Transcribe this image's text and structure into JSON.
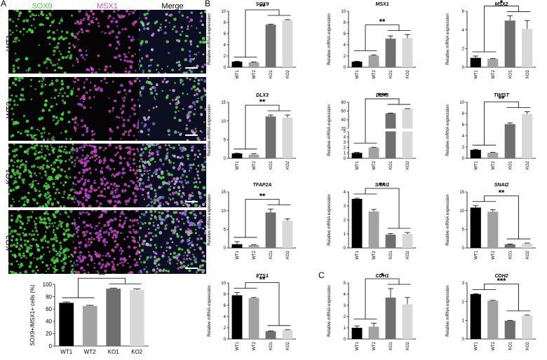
{
  "panels": {
    "A": "A",
    "B": "B",
    "C": "C"
  },
  "panel_a": {
    "columns": [
      {
        "label": "SOX9",
        "color": "#3fd43f"
      },
      {
        "label": "MSX1",
        "color": "#d04fd0"
      },
      {
        "label": "Merge",
        "color": "#000000"
      }
    ],
    "rows": [
      "WT1",
      "WT2",
      "KO1",
      "KO2"
    ]
  },
  "chart_data": [
    {
      "id": "quant",
      "type": "bar",
      "categories": [
        "WT1",
        "WT2",
        "KO1",
        "KO2"
      ],
      "values": [
        70,
        65,
        93,
        91
      ],
      "errors": [
        1.5,
        1,
        1,
        1.5
      ],
      "ylabel": "SOX9+/MSX1+ cells (%)",
      "yticks": [
        0,
        20,
        40,
        60,
        80,
        100
      ],
      "ylim": [
        0,
        100
      ],
      "sig": "**",
      "bracket": "groups"
    },
    {
      "id": "sox9",
      "type": "bar",
      "title": "SOX9",
      "categories": [
        "WT1",
        "WT2",
        "KO1",
        "KO2"
      ],
      "values": [
        1,
        0.9,
        7.6,
        8.4
      ],
      "errors": [
        0.05,
        0.05,
        0.1,
        0.1
      ],
      "ylabel": "Relative mRNA expression",
      "yticks": [
        0,
        2,
        4,
        6,
        8,
        10
      ],
      "ylim": [
        0,
        10
      ],
      "sig": "**",
      "bracket": "groups"
    },
    {
      "id": "msx1",
      "type": "bar",
      "title": "MSX1",
      "categories": [
        "WT1",
        "WT2",
        "KO1",
        "KO2"
      ],
      "values": [
        1,
        2.1,
        5.1,
        5.2
      ],
      "errors": [
        0.05,
        0.1,
        0.5,
        0.6
      ],
      "ylabel": "Relative mRNA expression",
      "yticks": [
        0,
        2,
        4,
        6,
        8,
        10
      ],
      "ylim": [
        0,
        10
      ],
      "sig": "**",
      "bracket": "groups"
    },
    {
      "id": "msx2",
      "type": "bar",
      "title": "MSX2",
      "categories": [
        "WT1",
        "WT2",
        "KO1",
        "KO2"
      ],
      "values": [
        1,
        0.9,
        5,
        4.1
      ],
      "errors": [
        0.2,
        0.05,
        0.5,
        0.9
      ],
      "ylabel": "Relative mRNA expression",
      "yticks": [
        0,
        2,
        4,
        6
      ],
      "ylim": [
        0,
        6
      ],
      "sig": "*",
      "bracket": "groups"
    },
    {
      "id": "dlx3",
      "type": "bar",
      "title": "DLX3",
      "categories": [
        "WT1",
        "WT2",
        "KO1",
        "KO2"
      ],
      "values": [
        1.3,
        1,
        11.2,
        10.9
      ],
      "errors": [
        0.05,
        0.2,
        0.4,
        0.7
      ],
      "ylabel": "Relative mRNA expression",
      "yticks": [
        0,
        5,
        10,
        15
      ],
      "ylim": [
        0,
        15
      ],
      "sig": "**",
      "bracket": "groups"
    },
    {
      "id": "dlx5",
      "type": "bar",
      "title": "DLX5",
      "categories": [
        "WT1",
        "WT2",
        "KO1",
        "KO2"
      ],
      "values": [
        1,
        2,
        55,
        65
      ],
      "errors": [
        0.1,
        0.05,
        0.5,
        0.5
      ],
      "ylabel": "Relative mRNA expression",
      "yticks": [
        0,
        1,
        2,
        3,
        4,
        5
      ],
      "yticks_upper": [
        20,
        40,
        60,
        80
      ],
      "ylim": [
        0,
        80
      ],
      "axis_break": [
        5,
        20
      ],
      "sig": "***",
      "bracket": "groups"
    },
    {
      "id": "twist",
      "type": "bar",
      "title": "TWIST",
      "categories": [
        "WT1",
        "WT2",
        "KO1",
        "KO2"
      ],
      "values": [
        1.5,
        1,
        6.1,
        7.9
      ],
      "errors": [
        0.1,
        0.05,
        0.2,
        0.4
      ],
      "ylabel": "Relative mRNA expression",
      "yticks": [
        0,
        2,
        4,
        6,
        8,
        10
      ],
      "ylim": [
        0,
        10
      ],
      "sig": "**",
      "bracket": "groups"
    },
    {
      "id": "tfap2a",
      "type": "bar",
      "title": "TFAP2A",
      "categories": [
        "WT1",
        "WT2",
        "KO1",
        "KO2"
      ],
      "values": [
        1,
        0.8,
        9.5,
        7.3
      ],
      "errors": [
        0.7,
        0.1,
        0.9,
        0.5
      ],
      "ylabel": "Relative mRNA expression",
      "yticks": [
        0,
        5,
        10,
        15
      ],
      "ylim": [
        0,
        15
      ],
      "sig": "**",
      "bracket": "groups"
    },
    {
      "id": "snai1",
      "type": "bar",
      "title": "SNAI1",
      "categories": [
        "WT1",
        "WT2",
        "KO1",
        "KO2"
      ],
      "values": [
        3.5,
        2.6,
        0.95,
        1
      ],
      "errors": [
        0.05,
        0.15,
        0.07,
        0.1
      ],
      "ylabel": "Relative mRNA expression",
      "yticks": [
        0,
        1,
        2,
        3,
        4
      ],
      "ylim": [
        0,
        4
      ],
      "sig": "**",
      "bracket": "groups"
    },
    {
      "id": "snai2",
      "type": "bar",
      "title": "SNAI2",
      "categories": [
        "WT1",
        "WT2",
        "KO1",
        "KO2"
      ],
      "values": [
        10.8,
        9.7,
        1,
        1.2
      ],
      "errors": [
        0.5,
        0.5,
        0.05,
        0.1
      ],
      "ylabel": "Relative mRNA expression",
      "yticks": [
        0,
        5,
        10,
        15
      ],
      "ylim": [
        0,
        15
      ],
      "sig": "**",
      "bracket": "groups"
    },
    {
      "id": "ets1",
      "type": "bar",
      "title": "ETS1",
      "categories": [
        "WT1",
        "WT2",
        "KO1",
        "KO2"
      ],
      "values": [
        7.8,
        7.3,
        1.4,
        1.6
      ],
      "errors": [
        0.5,
        0.1,
        0.05,
        0.05
      ],
      "ylabel": "Relative mRNA expression",
      "yticks": [
        0,
        2,
        4,
        6,
        8,
        10
      ],
      "ylim": [
        0,
        10
      ],
      "sig": "**",
      "bracket": "groups"
    },
    {
      "id": "cdh1",
      "type": "bar",
      "title": "CDH1",
      "categories": [
        "WT1",
        "WT2",
        "KO1",
        "KO2"
      ],
      "values": [
        1,
        1.1,
        3.7,
        3.1
      ],
      "errors": [
        0.15,
        0.3,
        0.8,
        0.6
      ],
      "ylabel": "Relative mRNA expression",
      "yticks": [
        0,
        1,
        2,
        3,
        4,
        5
      ],
      "ylim": [
        0,
        5
      ],
      "sig": "*",
      "bracket": "groups"
    },
    {
      "id": "cdh2",
      "type": "bar",
      "title": "CDH2",
      "categories": [
        "WT1",
        "WT2",
        "KO1",
        "KO2"
      ],
      "values": [
        2.4,
        2.05,
        0.98,
        1.25
      ],
      "errors": [
        0.02,
        0.02,
        0.02,
        0.03
      ],
      "ylabel": "Relative mRNA expression",
      "yticks": [
        0,
        1,
        2,
        3
      ],
      "ylim": [
        0,
        3
      ],
      "sig": "***",
      "bracket": "groups"
    }
  ],
  "colors": {
    "bars": [
      "#000000",
      "#a2a2a2",
      "#6f6f6f",
      "#d8d8d8"
    ],
    "green": "#3fd43f",
    "magenta": "#d04fd0"
  }
}
